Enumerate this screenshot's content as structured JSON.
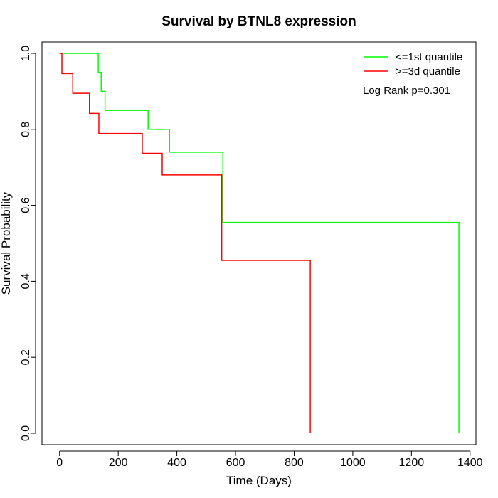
{
  "chart_data": {
    "type": "line",
    "title": "Survival by BTNL8 expression",
    "xlabel": "Time (Days)",
    "ylabel": "Survival Probability",
    "xlim": [
      -60,
      1420
    ],
    "ylim": [
      -0.03,
      1.03
    ],
    "xticks": [
      0,
      200,
      400,
      600,
      800,
      1000,
      1200,
      1400
    ],
    "yticks": [
      0.0,
      0.2,
      0.4,
      0.6,
      0.8,
      1.0
    ],
    "xtick_labels": [
      "0",
      "200",
      "400",
      "600",
      "800",
      "1000",
      "1200",
      "1400"
    ],
    "ytick_labels": [
      "0.0",
      "0.2",
      "0.4",
      "0.6",
      "0.8",
      "1.0"
    ],
    "grid": false,
    "legend_position": "top-right",
    "annotation": "Log Rank p=0.301",
    "series": [
      {
        "name": "<=1st quantile",
        "color": "#00ff00",
        "step": true,
        "x": [
          0,
          132,
          142,
          155,
          302,
          375,
          557,
          1362,
          1362
        ],
        "y": [
          1.0,
          0.95,
          0.9,
          0.85,
          0.8,
          0.74,
          0.555,
          0.555,
          0.0
        ]
      },
      {
        "name": ">=3d quantile",
        "color": "#ff0000",
        "step": true,
        "x": [
          0,
          8,
          45,
          102,
          134,
          282,
          350,
          553,
          855,
          855
        ],
        "y": [
          1.0,
          0.947,
          0.895,
          0.842,
          0.789,
          0.737,
          0.68,
          0.455,
          0.455,
          0.0
        ]
      }
    ]
  }
}
